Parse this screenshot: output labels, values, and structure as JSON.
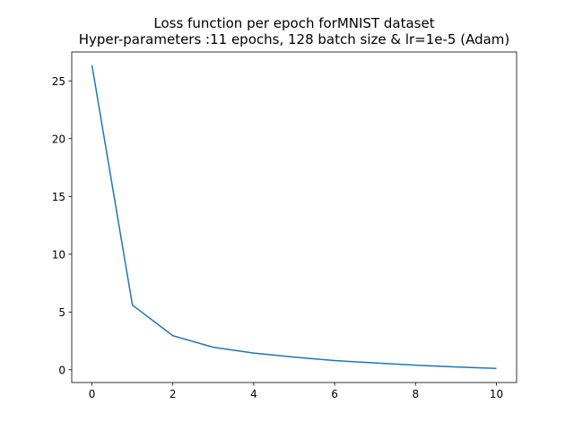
{
  "chart_data": {
    "type": "line",
    "title_line1": "Loss function per epoch forMNIST dataset",
    "title_line2": "Hyper-parameters :11 epochs, 128 batch size & lr=1e-5 (Adam)",
    "xlabel": "",
    "ylabel": "",
    "xlim": [
      -0.5,
      10.5
    ],
    "ylim": [
      -1.1,
      27.5
    ],
    "x_ticks": [
      0,
      2,
      4,
      6,
      8,
      10
    ],
    "y_ticks": [
      0,
      5,
      10,
      15,
      20,
      25
    ],
    "grid": false,
    "line_color": "#1f77b4",
    "series": [
      {
        "x": [
          0,
          1,
          2,
          3,
          4,
          5,
          6,
          7,
          8,
          9,
          10
        ],
        "values": [
          26.35,
          5.6,
          2.95,
          1.95,
          1.45,
          1.1,
          0.8,
          0.6,
          0.4,
          0.25,
          0.12
        ]
      }
    ]
  }
}
